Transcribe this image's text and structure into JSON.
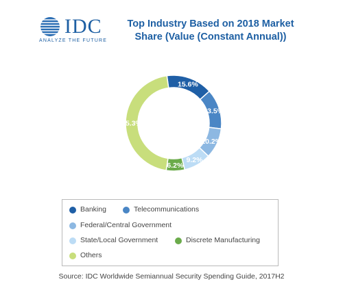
{
  "logo": {
    "wordmark": "IDC",
    "tagline": "ANALYZE THE FUTURE"
  },
  "chart_data": {
    "type": "pie",
    "title_lines": [
      "Top Industry Based on 2018 Market",
      "Share (Value (Constant Annual))"
    ],
    "categories": [
      "Banking",
      "Telecommunications",
      "Federal/Central Government",
      "State/Local Government",
      "Discrete Manufacturing",
      "Others"
    ],
    "values": [
      15.6,
      13.5,
      10.2,
      9.2,
      6.2,
      45.3
    ],
    "labels": [
      "15.6%",
      "13.5%",
      "10.2%",
      "9.2%",
      "6.2%",
      "45.3%"
    ],
    "colors": [
      "#1f5fa6",
      "#4a86c5",
      "#8db8e2",
      "#bcdcf5",
      "#6bab4b",
      "#c8de7c"
    ],
    "legend_position": "bottom",
    "source": "Source: IDC Worldwide Semiannual Security Spending Guide, 2017H2"
  }
}
